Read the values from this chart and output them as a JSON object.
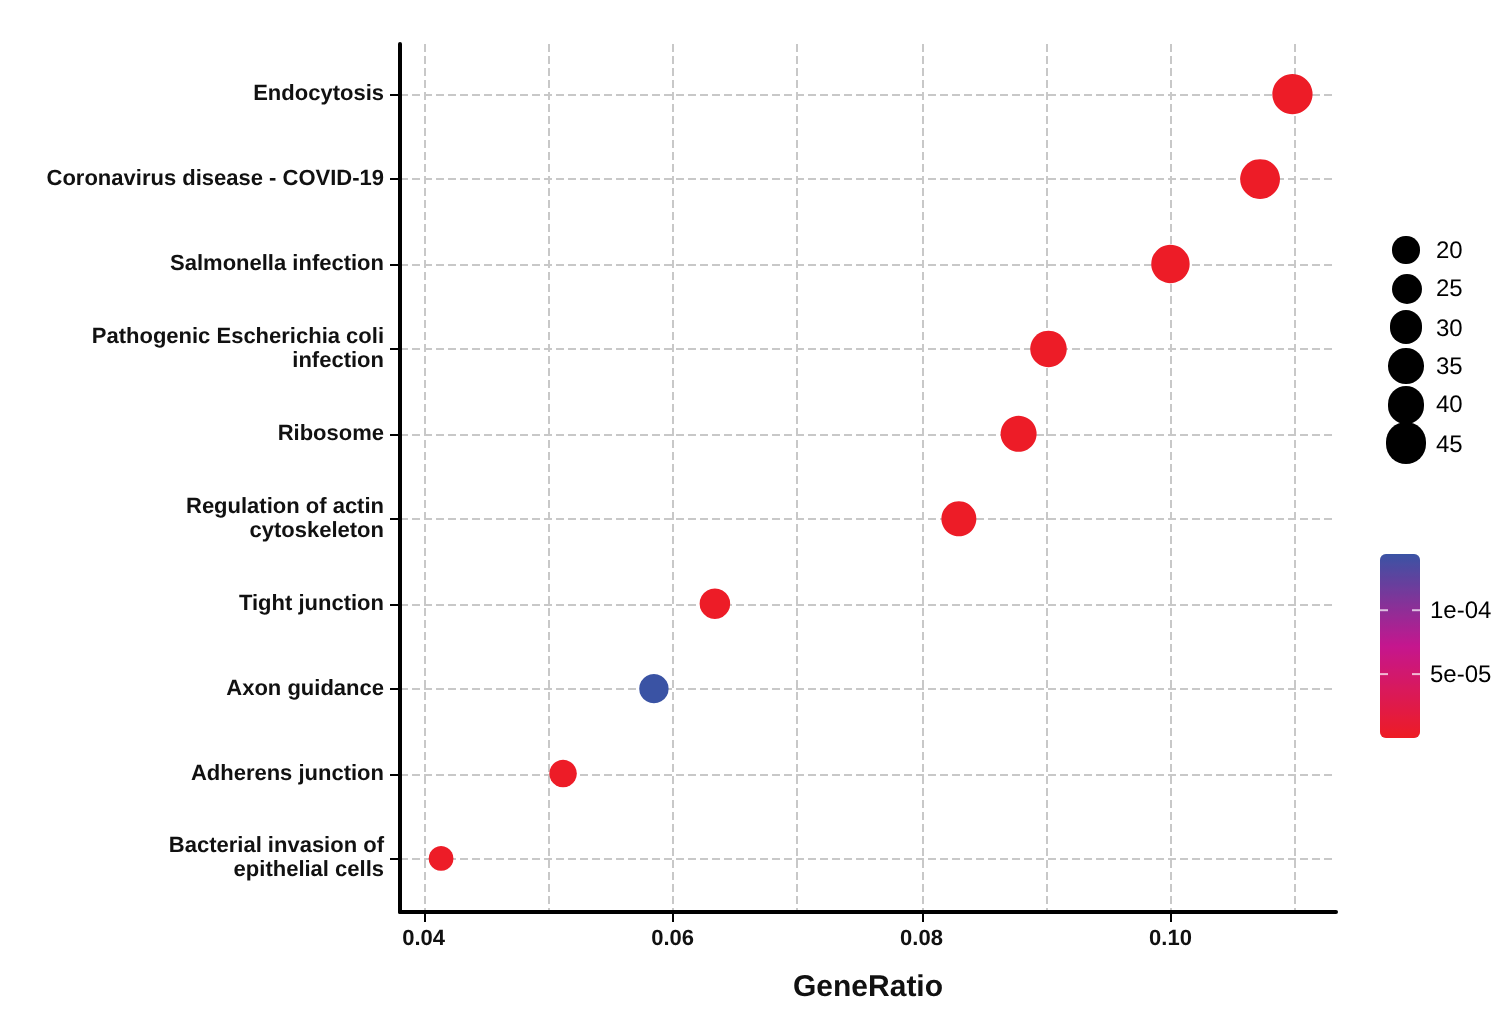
{
  "chart_data": {
    "type": "bubble",
    "xlabel": "GeneRatio",
    "orientation": "horizontal",
    "categories": [
      "Endocytosis",
      "Coronavirus disease - COVID-19",
      "Salmonella infection",
      "Pathogenic Escherichia coli\ninfection",
      "Ribosome",
      "Regulation of actin\ncytoskeleton",
      "Tight junction",
      "Axon guidance",
      "Adherens junction",
      "Bacterial invasion of\nepithelial cells"
    ],
    "values": [
      0.1098,
      0.1072,
      0.1,
      0.0902,
      0.0878,
      0.083,
      0.0634,
      0.0585,
      0.0512,
      0.0414
    ],
    "sizes": [
      45,
      44,
      41,
      37,
      36,
      34,
      26,
      24,
      21,
      17
    ],
    "cvalues": [
      2e-06,
      2e-06,
      2e-06,
      2e-06,
      2e-06,
      2e-06,
      2e-06,
      0.000144,
      2e-06,
      2e-06
    ],
    "clim": [
      0,
      0.000144
    ],
    "cticks": [
      {
        "value": 0.0001,
        "label": "1e-04"
      },
      {
        "value": 5e-05,
        "label": "5e-05"
      }
    ],
    "size_legend": [
      20,
      25,
      30,
      35,
      40,
      45
    ],
    "xlim": [
      0.0381,
      0.1133
    ],
    "xticks": [
      {
        "value": 0.04,
        "label": "0.04"
      },
      {
        "value": 0.05,
        "label": null
      },
      {
        "value": 0.06,
        "label": "0.06"
      },
      {
        "value": 0.07,
        "label": null
      },
      {
        "value": 0.08,
        "label": "0.08"
      },
      {
        "value": 0.09,
        "label": null
      },
      {
        "value": 0.1,
        "label": "0.10"
      },
      {
        "value": 0.11,
        "label": null
      }
    ],
    "grid": true,
    "marker": "circle"
  }
}
